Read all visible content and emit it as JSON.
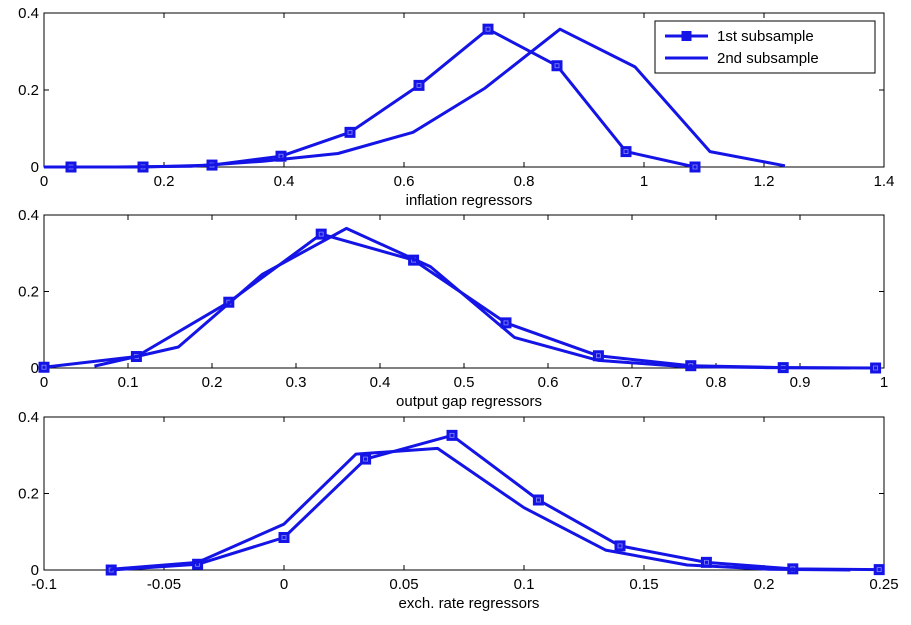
{
  "chart_data": [
    {
      "type": "line",
      "xlabel": "inflation regressors",
      "ylabel": "",
      "xlim": [
        0,
        1.4
      ],
      "ylim": [
        0,
        0.4
      ],
      "xticks": [
        "0",
        "0.2",
        "0.4",
        "0.6",
        "0.8",
        "1",
        "1.2",
        "1.4"
      ],
      "yticks": [
        "0",
        "0.2",
        "0.4"
      ],
      "grid": false,
      "legend": "top-right",
      "series": [
        {
          "name": "1st subsample",
          "marker": "square",
          "x": [
            0.045,
            0.165,
            0.28,
            0.395,
            0.51,
            0.625,
            0.74,
            0.855,
            0.97,
            1.085
          ],
          "y": [
            0.0,
            0.0,
            0.005,
            0.028,
            0.09,
            0.212,
            0.358,
            0.263,
            0.04,
            0.0
          ]
        },
        {
          "name": "2nd subsample",
          "marker": "none",
          "x": [
            0.0,
            0.12,
            0.245,
            0.365,
            0.49,
            0.615,
            0.735,
            0.86,
            0.985,
            1.11,
            1.235
          ],
          "y": [
            0.0,
            0.0,
            0.002,
            0.015,
            0.035,
            0.09,
            0.205,
            0.358,
            0.26,
            0.04,
            0.003
          ]
        }
      ]
    },
    {
      "type": "line",
      "xlabel": "output gap regressors",
      "ylabel": "",
      "xlim": [
        0,
        1
      ],
      "ylim": [
        0,
        0.4
      ],
      "xticks": [
        "0",
        "0.1",
        "0.2",
        "0.3",
        "0.4",
        "0.5",
        "0.6",
        "0.7",
        "0.8",
        "0.9",
        "1"
      ],
      "yticks": [
        "0",
        "0.2",
        "0.4"
      ],
      "grid": false,
      "series": [
        {
          "name": "1st subsample",
          "marker": "square",
          "x": [
            0.0,
            0.11,
            0.22,
            0.33,
            0.44,
            0.55,
            0.66,
            0.77,
            0.88,
            0.99
          ],
          "y": [
            0.002,
            0.03,
            0.172,
            0.35,
            0.282,
            0.118,
            0.032,
            0.006,
            0.001,
            0.0
          ]
        },
        {
          "name": "2nd subsample",
          "marker": "none",
          "x": [
            0.06,
            0.16,
            0.26,
            0.36,
            0.46,
            0.56,
            0.66,
            0.76,
            0.86,
            0.96
          ],
          "y": [
            0.005,
            0.055,
            0.245,
            0.365,
            0.265,
            0.08,
            0.02,
            0.004,
            0.001,
            0.0
          ]
        }
      ]
    },
    {
      "type": "line",
      "xlabel": "exch. rate regressors",
      "ylabel": "",
      "xlim": [
        -0.1,
        0.25
      ],
      "ylim": [
        0,
        0.4
      ],
      "xticks": [
        "-0.1",
        "-0.05",
        "0",
        "0.05",
        "0.1",
        "0.15",
        "0.2",
        "0.25"
      ],
      "yticks": [
        "0",
        "0.2",
        "0.4"
      ],
      "grid": false,
      "series": [
        {
          "name": "1st subsample",
          "marker": "square",
          "x": [
            -0.072,
            -0.036,
            0.0,
            0.034,
            0.07,
            0.106,
            0.14,
            0.176,
            0.212,
            0.248
          ],
          "y": [
            0.0,
            0.015,
            0.085,
            0.29,
            0.352,
            0.183,
            0.063,
            0.02,
            0.003,
            0.001
          ]
        },
        {
          "name": "2nd subsample",
          "marker": "none",
          "x": [
            -0.072,
            -0.036,
            0.0,
            0.03,
            0.064,
            0.1,
            0.134,
            0.168,
            0.202,
            0.236
          ],
          "y": [
            0.002,
            0.02,
            0.12,
            0.303,
            0.318,
            0.163,
            0.052,
            0.013,
            0.002,
            0.0
          ]
        }
      ]
    }
  ],
  "colors": {
    "series_line": "#1414e6",
    "axis": "#000000",
    "background": "#ffffff"
  }
}
